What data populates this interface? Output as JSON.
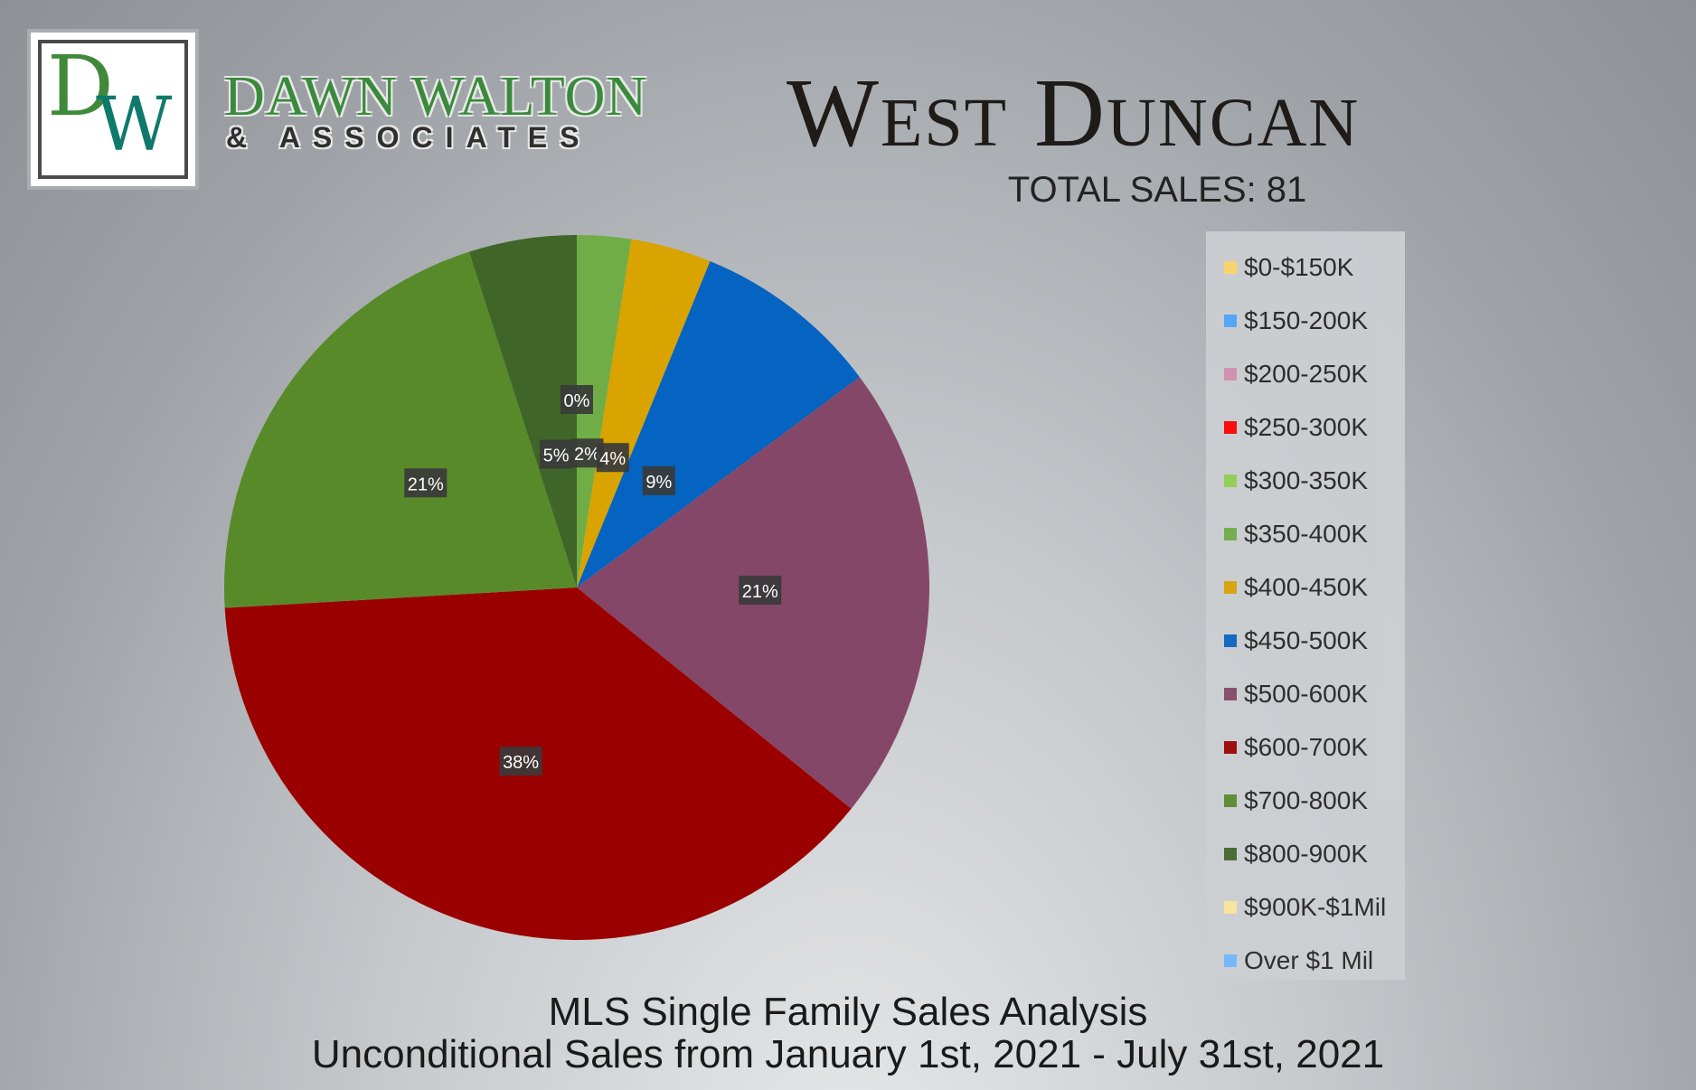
{
  "brand": {
    "logo_letters": {
      "d": "D",
      "w": "W"
    },
    "name": "DAWN WALTON",
    "sub": "& ASSOCIATES"
  },
  "header": {
    "title": "West Duncan",
    "total_sales": "TOTAL SALES: 81"
  },
  "footer": {
    "line1": "MLS Single Family Sales Analysis",
    "line2": "Unconditional Sales from January 1st, 2021 - July 31st, 2021"
  },
  "chart_data": {
    "type": "pie",
    "categories": [
      "$0-$150K",
      "$150-200K",
      "$200-250K",
      "$250-300K",
      "$300-350K",
      "$350-400K",
      "$400-450K",
      "$450-500K",
      "$500-600K",
      "$600-700K",
      "$700-800K",
      "$800-900K",
      "$900K-$1Mil",
      "Over $1 Mil"
    ],
    "values": [
      0,
      0,
      0,
      0,
      0,
      2,
      3,
      7,
      17,
      31,
      17,
      4,
      0,
      0
    ],
    "data_labels": [
      "0%",
      "0%",
      "0%",
      "0%",
      "0%",
      "2%",
      "4%",
      "9%",
      "21%",
      "38%",
      "21%",
      "5%",
      "0%",
      "0%"
    ],
    "colors": [
      "#ffd966",
      "#4da6ff",
      "#d48fb0",
      "#ff0000",
      "#92d050",
      "#70ad47",
      "#d9a300",
      "#0563c1",
      "#844767",
      "#9b0000",
      "#588a2a",
      "#3f6628",
      "#ffe599",
      "#6fb7ff"
    ],
    "legend_position": "right"
  }
}
